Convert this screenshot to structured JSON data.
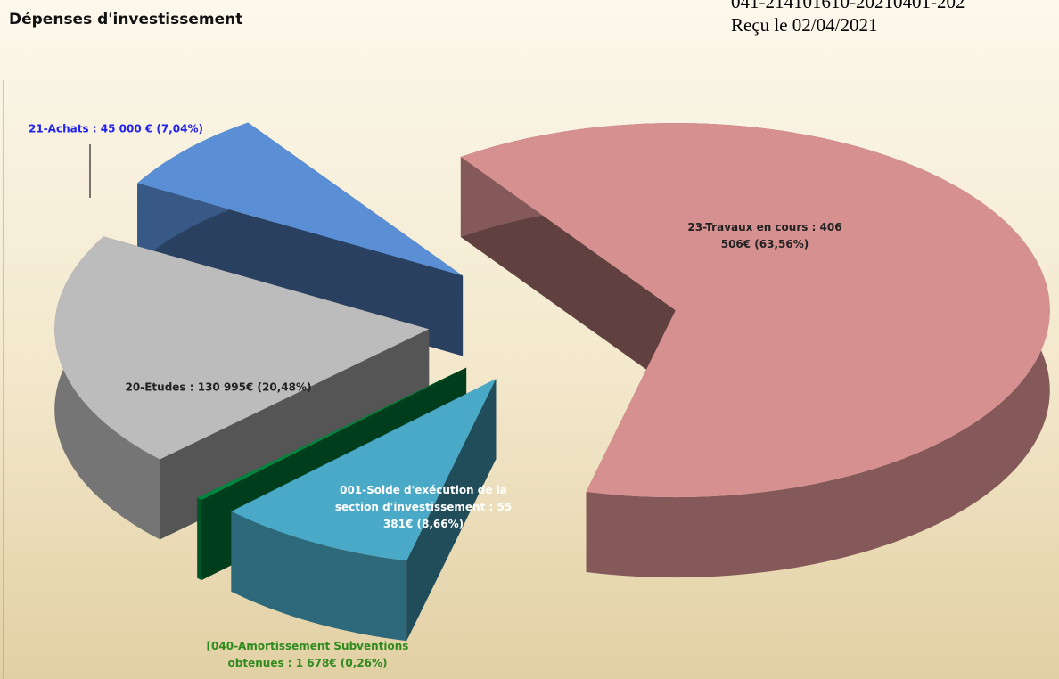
{
  "stamp_lines": [
    "041-214101610-20210401-202",
    "Reçu le 02/04/2021"
  ],
  "chart_data": {
    "type": "pie3d",
    "title": "Dépenses d'investissement",
    "values": [
      406506,
      55381,
      1678,
      130995,
      45000
    ],
    "value_labels": [
      "23-Travaux en cours : 406 506€ (63,56%)",
      "001-Solde d'exécution de la section d'investissement : 55 381€ (8,66%)",
      "[040-Amortissement Subventions obtenues : 1 678€ (0,26%)",
      "20-Etudes : 130 995€ (20,48%)",
      "21-Achats : 45 000 € (7,04%)"
    ],
    "colors": [
      "#d6908f",
      "#4aa9c6",
      "#00873f",
      "#bcbcbc",
      "#5a8fd6"
    ],
    "label_colors": [
      "#222222",
      "#ffffff",
      "#2e8b1e",
      "#222222",
      "#2222ee"
    ]
  }
}
